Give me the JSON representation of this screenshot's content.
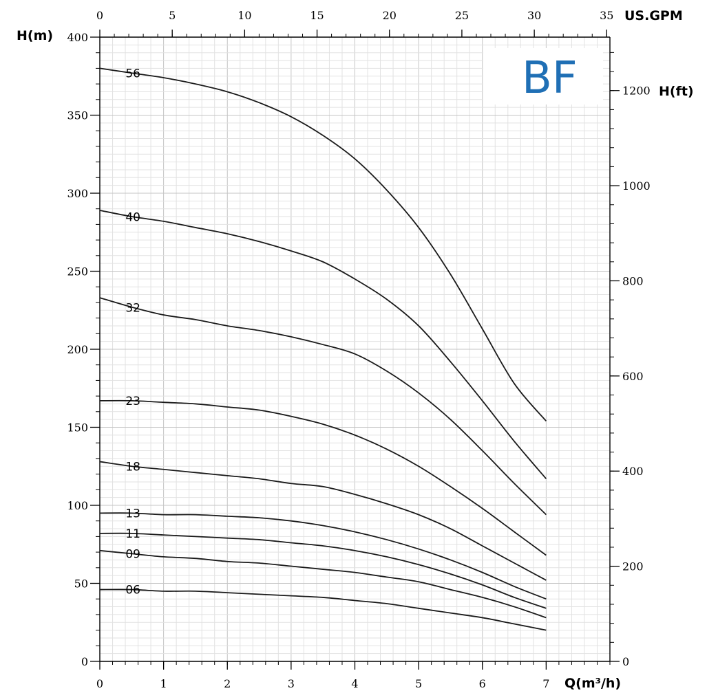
{
  "brand": {
    "label": "BF",
    "color": "#1f6fb5"
  },
  "chart_data": {
    "type": "line",
    "xlabel": "Q(m³/h)",
    "ylabel": "H(m)",
    "x2label": "US.GPM",
    "y2label": "H(ft)",
    "xlim": [
      0,
      8
    ],
    "ylim": [
      0,
      400
    ],
    "x_ticks": [
      0,
      1,
      2,
      3,
      4,
      5,
      6,
      7
    ],
    "y_ticks": [
      0,
      50,
      100,
      150,
      200,
      250,
      300,
      350,
      400
    ],
    "x2_ticks": [
      0,
      5,
      10,
      15,
      20,
      25,
      30,
      35
    ],
    "y2_ticks": [
      0,
      200,
      400,
      600,
      800,
      1000,
      1200
    ],
    "grid": true,
    "x": [
      0,
      0.5,
      1,
      1.5,
      2,
      2.5,
      3,
      3.5,
      4,
      4.5,
      5,
      5.5,
      6,
      6.5,
      7
    ],
    "series": [
      {
        "name": "56",
        "values": [
          380,
          377,
          374,
          370,
          365,
          358,
          349,
          337,
          322,
          302,
          278,
          248,
          213,
          178,
          154
        ]
      },
      {
        "name": "40",
        "values": [
          289,
          285,
          282,
          278,
          274,
          269,
          263,
          256,
          245,
          232,
          215,
          192,
          167,
          141,
          117
        ]
      },
      {
        "name": "32",
        "values": [
          233,
          227,
          222,
          219,
          215,
          212,
          208,
          203,
          197,
          186,
          172,
          155,
          135,
          114,
          94
        ]
      },
      {
        "name": "23",
        "values": [
          167,
          167,
          166,
          165,
          163,
          161,
          157,
          152,
          145,
          136,
          125,
          112,
          98,
          83,
          68
        ]
      },
      {
        "name": "18",
        "values": [
          128,
          125,
          123,
          121,
          119,
          117,
          114,
          112,
          107,
          101,
          94,
          85,
          74,
          63,
          52
        ]
      },
      {
        "name": "13",
        "values": [
          95,
          95,
          94,
          94,
          93,
          92,
          90,
          87,
          83,
          78,
          72,
          65,
          57,
          48,
          40
        ]
      },
      {
        "name": "11",
        "values": [
          82,
          82,
          81,
          80,
          79,
          78,
          76,
          74,
          71,
          67,
          62,
          56,
          49,
          41,
          34
        ]
      },
      {
        "name": "09",
        "values": [
          71,
          69,
          67,
          66,
          64,
          63,
          61,
          59,
          57,
          54,
          51,
          46,
          41,
          35,
          28
        ]
      },
      {
        "name": "06",
        "values": [
          46,
          46,
          45,
          45,
          44,
          43,
          42,
          41,
          39,
          37,
          34,
          31,
          28,
          24,
          20
        ]
      }
    ]
  }
}
